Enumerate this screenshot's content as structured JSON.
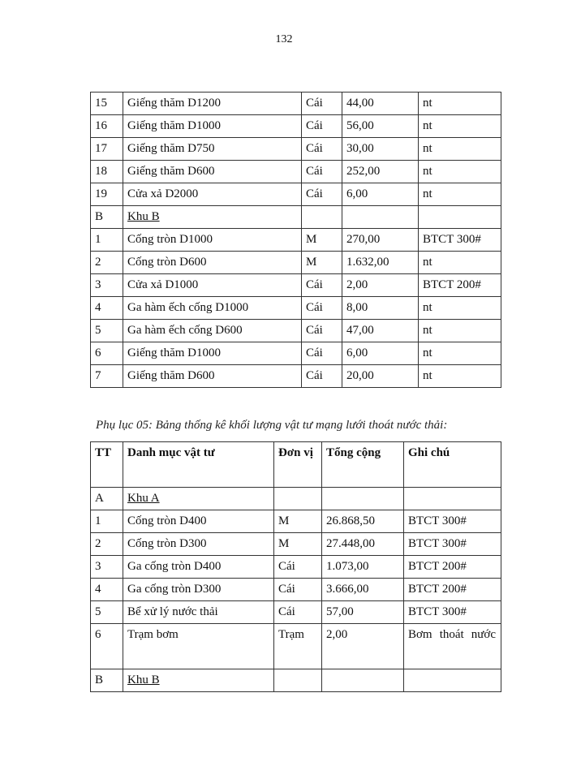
{
  "page_number": "132",
  "table1": {
    "rows": [
      [
        "15",
        "Giếng thăm D1200",
        "Cái",
        "44,00",
        "nt"
      ],
      [
        "16",
        "Giếng thăm D1000",
        "Cái",
        "56,00",
        "nt"
      ],
      [
        "17",
        "Giếng thăm D750",
        "Cái",
        "30,00",
        "nt"
      ],
      [
        "18",
        "Giếng thăm D600",
        "Cái",
        "252,00",
        "nt"
      ],
      [
        "19",
        "Cửa xả D2000",
        "Cái",
        "6,00",
        "nt"
      ],
      [
        "B",
        "Khu B",
        "",
        "",
        ""
      ],
      [
        "1",
        "Cống tròn D1000",
        "M",
        "270,00",
        "BTCT 300#"
      ],
      [
        "2",
        "Cống tròn D600",
        "M",
        "1.632,00",
        "nt"
      ],
      [
        "3",
        "Cửa xả D1000",
        "Cái",
        "2,00",
        "BTCT 200#"
      ],
      [
        "4",
        "Ga hàm ếch cống D1000",
        "Cái",
        "8,00",
        "nt"
      ],
      [
        "5",
        "Ga hàm ếch cống D600",
        "Cái",
        "47,00",
        "nt"
      ],
      [
        "6",
        "Giếng thăm D1000",
        "Cái",
        "6,00",
        "nt"
      ],
      [
        "7",
        "Giếng thăm D600",
        "Cái",
        "20,00",
        "nt"
      ]
    ]
  },
  "caption": "Phụ lục 05: Bảng thống kê khối lượng vật tư mạng lưới thoát nước thải:",
  "table2": {
    "headers": [
      "TT",
      "Danh mục vật tư",
      "Đơn vị",
      "Tổng cộng",
      "Ghi chú"
    ],
    "rows": [
      [
        "A",
        "Khu A",
        "",
        "",
        ""
      ],
      [
        "1",
        "Cống tròn D400",
        "M",
        "26.868,50",
        "BTCT 300#"
      ],
      [
        "2",
        "Cống tròn D300",
        "M",
        "27.448,00",
        "BTCT 300#"
      ],
      [
        "3",
        "Ga cống tròn D400",
        "Cái",
        "1.073,00",
        "BTCT 200#"
      ],
      [
        "4",
        "Ga cống tròn D300",
        "Cái",
        "3.666,00",
        "BTCT 200#"
      ],
      [
        "5",
        "Bể xử lý nước thải",
        "Cái",
        "57,00",
        "BTCT 300#"
      ],
      [
        "6",
        "Trạm bơm",
        "Trạm",
        "2,00",
        "Bơm thoát nước"
      ],
      [
        "B",
        "Khu B",
        "",
        "",
        ""
      ]
    ]
  }
}
